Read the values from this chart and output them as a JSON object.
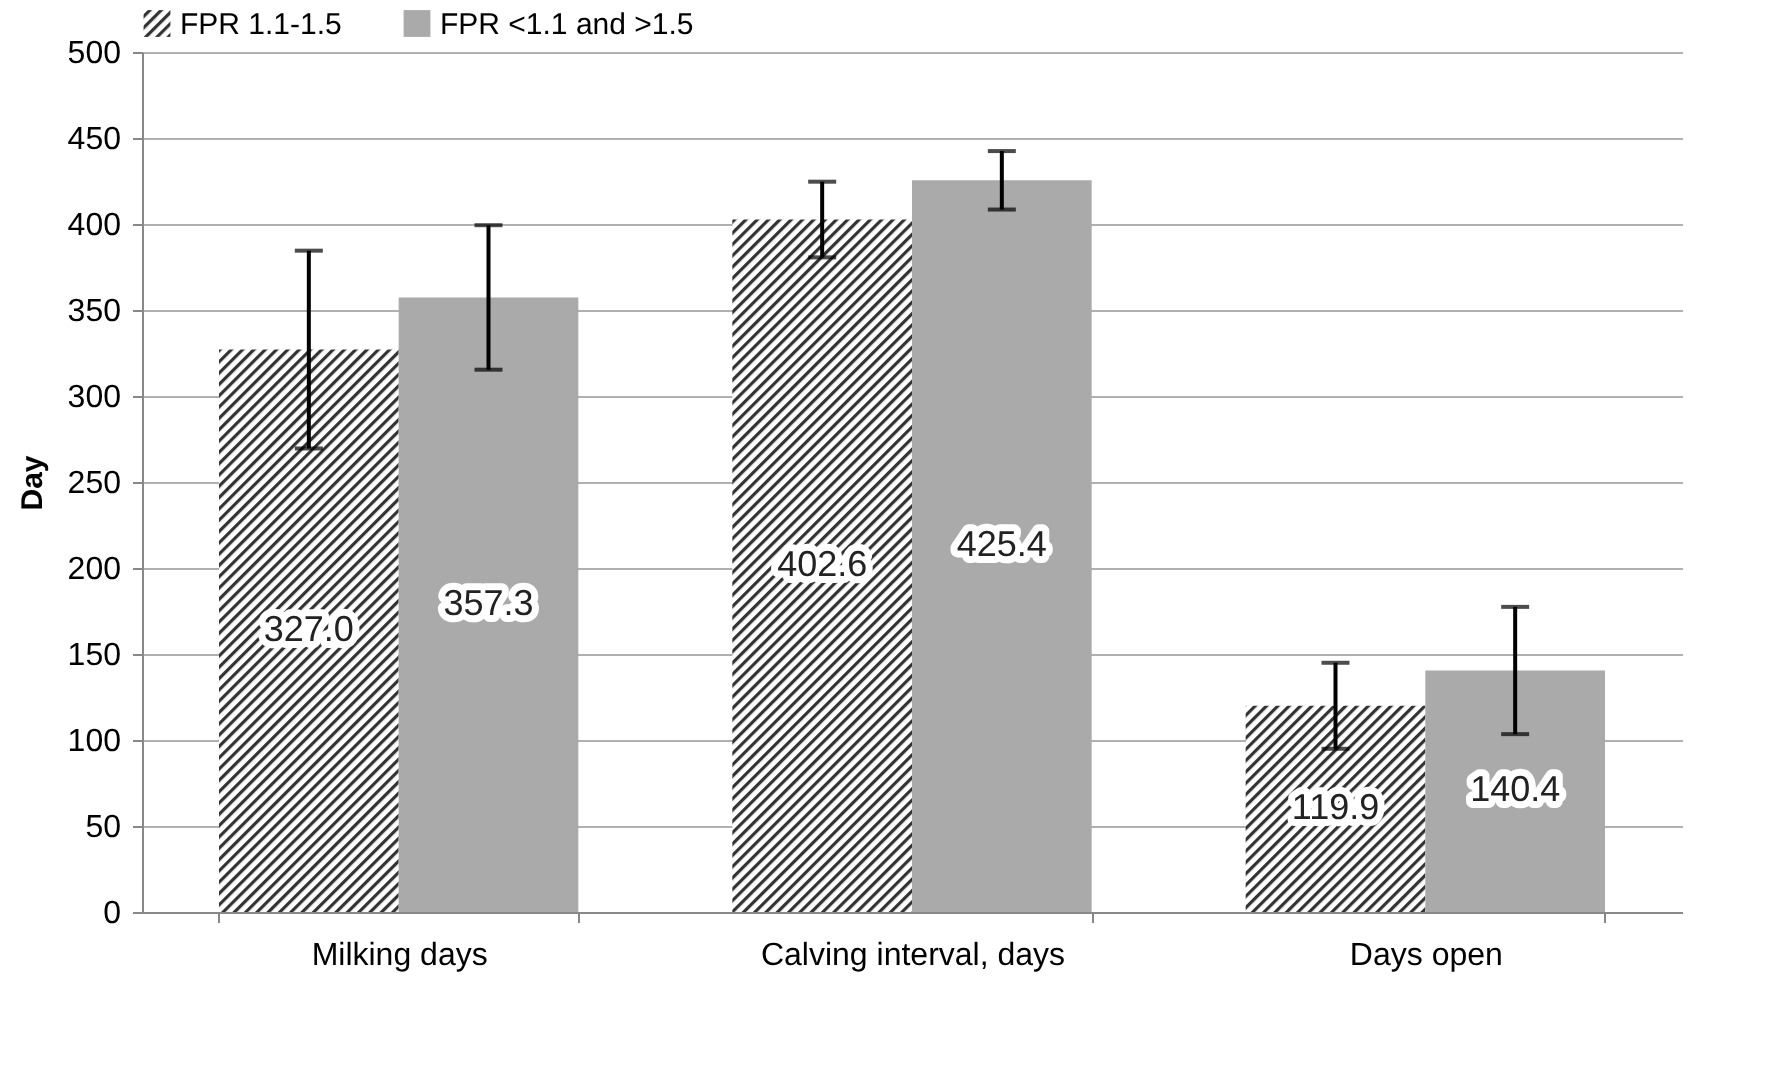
{
  "chart_data": {
    "type": "bar",
    "ylabel": "Day",
    "categories": [
      "Milking days",
      "Calving interval, days",
      "Days open"
    ],
    "series": [
      {
        "name": "FPR 1.1-1.5",
        "color": "#333333",
        "values": [
          327.0,
          402.6,
          119.9
        ],
        "errors": [
          57.5,
          22,
          25
        ],
        "value_labels": [
          "327.0",
          "402.6",
          "119.9"
        ]
      },
      {
        "name": "FPR <1.1 and >1.5",
        "color": "#aaaaaa",
        "values": [
          357.3,
          425.4,
          140.4
        ],
        "errors": [
          42,
          17,
          37
        ],
        "value_labels": [
          "357.3",
          "425.4",
          "140.4"
        ]
      }
    ],
    "ylim": [
      0,
      500
    ],
    "yticks": [
      0,
      50,
      100,
      150,
      200,
      250,
      300,
      350,
      400,
      450,
      500
    ],
    "grid": "y",
    "legend": "top"
  }
}
